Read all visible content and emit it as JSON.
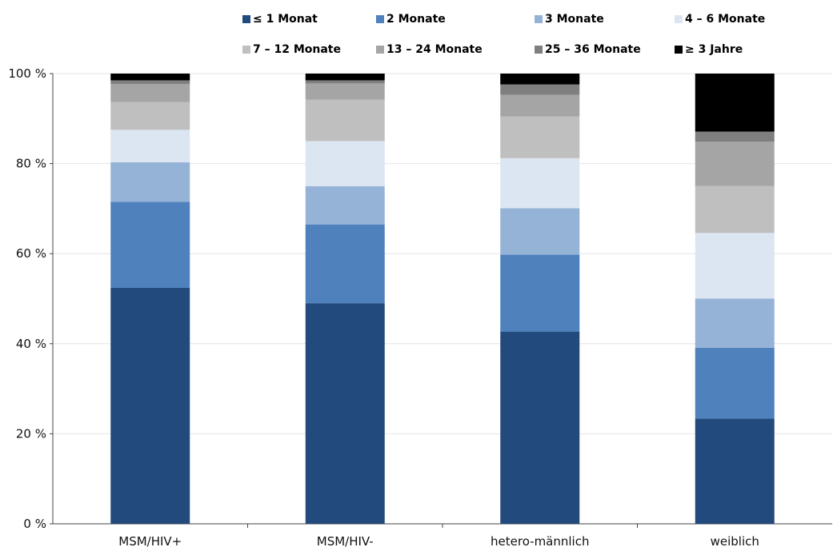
{
  "chart_data": {
    "type": "bar",
    "stacked": true,
    "percent_stacked": true,
    "title": "",
    "xlabel": "",
    "ylabel": "",
    "ylim": [
      0,
      100
    ],
    "y_ticks": [
      "0 %",
      "20 %",
      "40 %",
      "60 %",
      "80 %",
      "100 %"
    ],
    "grid": true,
    "legend_position": "top",
    "categories": [
      "MSM/HIV+",
      "MSM/HIV-",
      "hetero-männlich",
      "weiblich"
    ],
    "series": [
      {
        "name": "≤ 1 Monat",
        "color": "#234a7c",
        "values": [
          52.4,
          49.0,
          42.7,
          23.4
        ]
      },
      {
        "name": "2 Monate",
        "color": "#4f81bd",
        "values": [
          19.1,
          17.5,
          17.1,
          15.7
        ]
      },
      {
        "name": "3 Monate",
        "color": "#95b3d7",
        "values": [
          8.8,
          8.5,
          10.3,
          10.9
        ]
      },
      {
        "name": "4 – 6 Monate",
        "color": "#dce6f2",
        "values": [
          7.2,
          10.0,
          11.1,
          14.6
        ]
      },
      {
        "name": "7 – 12 Monate",
        "color": "#bfbfbf",
        "values": [
          6.2,
          9.2,
          9.3,
          10.4
        ]
      },
      {
        "name": "13 – 24 Monate",
        "color": "#a5a5a5",
        "values": [
          4.0,
          3.6,
          4.8,
          9.9
        ]
      },
      {
        "name": "25 – 36 Monate",
        "color": "#7f7f7f",
        "values": [
          0.8,
          0.7,
          2.3,
          2.2
        ]
      },
      {
        "name": "≥ 3 Jahre",
        "color": "#000000",
        "values": [
          1.5,
          1.5,
          2.4,
          12.9
        ]
      }
    ]
  }
}
